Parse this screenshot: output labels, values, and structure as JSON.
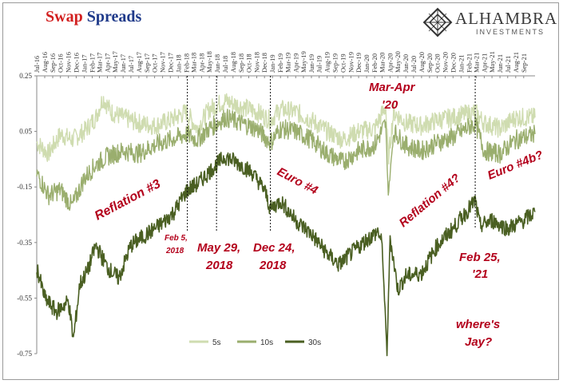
{
  "header": {
    "title_part1": "Swap",
    "title_part2": "Spreads",
    "brand_name": "ALHAMBRA",
    "brand_sub": "INVESTMENTS"
  },
  "chart_data": {
    "type": "line",
    "title": "Swap Spreads",
    "ylim": [
      -0.75,
      0.25
    ],
    "yticks": [
      0.25,
      0.05,
      -0.15,
      -0.35,
      -0.55,
      -0.75
    ],
    "ytick_labels": [
      "0.25",
      "0.05",
      "-0.15",
      "-0.35",
      "-0.55",
      "-0.75"
    ],
    "xlim": [
      "2016-07-01",
      "2021-10-15"
    ],
    "xtick_labels": [
      "Jul-16",
      "Aug-16",
      "Sep-16",
      "Oct-16",
      "Nov-16",
      "Dec-16",
      "Jan-17",
      "Feb-17",
      "Mar-17",
      "Apr-17",
      "May-17",
      "Jun-17",
      "Jul-17",
      "Aug-17",
      "Sep-17",
      "Oct-17",
      "Nov-17",
      "Dec-17",
      "Jan-18",
      "Feb-18",
      "Mar-18",
      "Apr-18",
      "May-18",
      "Jun-18",
      "Jul-18",
      "Aug-18",
      "Sep-18",
      "Oct-18",
      "Nov-18",
      "Dec-18",
      "Jan-19",
      "Feb-19",
      "Mar-19",
      "Apr-19",
      "May-19",
      "Jun-19",
      "Jul-19",
      "Aug-19",
      "Sep-19",
      "Oct-19",
      "Nov-19",
      "Dec-19",
      "Jan-20",
      "Feb-20",
      "Mar-20",
      "Apr-20",
      "May-20",
      "Jun-20",
      "Jul-20",
      "Aug-20",
      "Sep-20",
      "Oct-20",
      "Nov-20",
      "Dec-20",
      "Jan-21",
      "Feb-21",
      "Mar-21",
      "Apr-21",
      "May-21",
      "Jun-21",
      "Jul-21",
      "Aug-21",
      "Sep-21"
    ],
    "legend_position": "bottom-center",
    "series": [
      {
        "name": "5s",
        "color": "#cfdcb0",
        "points": [
          [
            "2016-07-01",
            0.01
          ],
          [
            "2016-08-15",
            -0.03
          ],
          [
            "2016-10-01",
            0.04
          ],
          [
            "2016-11-15",
            0.02
          ],
          [
            "2017-01-01",
            0.05
          ],
          [
            "2017-02-15",
            0.1
          ],
          [
            "2017-03-15",
            0.17
          ],
          [
            "2017-04-15",
            0.12
          ],
          [
            "2017-06-01",
            0.1
          ],
          [
            "2017-08-01",
            0.08
          ],
          [
            "2017-10-01",
            0.07
          ],
          [
            "2017-12-01",
            0.09
          ],
          [
            "2018-02-01",
            0.12
          ],
          [
            "2018-03-15",
            0.06
          ],
          [
            "2018-05-01",
            0.13
          ],
          [
            "2018-07-01",
            0.16
          ],
          [
            "2018-09-01",
            0.14
          ],
          [
            "2018-11-01",
            0.12
          ],
          [
            "2018-12-24",
            0.09
          ],
          [
            "2019-02-01",
            0.13
          ],
          [
            "2019-04-01",
            0.12
          ],
          [
            "2019-06-01",
            0.09
          ],
          [
            "2019-08-01",
            0.05
          ],
          [
            "2019-10-01",
            0.02
          ],
          [
            "2019-12-01",
            0.05
          ],
          [
            "2020-02-01",
            0.06
          ],
          [
            "2020-03-15",
            0.14
          ],
          [
            "2020-03-25",
            -0.05
          ],
          [
            "2020-04-15",
            0.12
          ],
          [
            "2020-06-01",
            0.08
          ],
          [
            "2020-08-01",
            0.07
          ],
          [
            "2020-10-01",
            0.09
          ],
          [
            "2020-12-01",
            0.1
          ],
          [
            "2021-02-25",
            0.12
          ],
          [
            "2021-04-01",
            0.08
          ],
          [
            "2021-06-01",
            0.06
          ],
          [
            "2021-08-01",
            0.1
          ],
          [
            "2021-10-15",
            0.1
          ]
        ]
      },
      {
        "name": "10s",
        "color": "#9aae6e",
        "points": [
          [
            "2016-07-01",
            -0.1
          ],
          [
            "2016-08-15",
            -0.18
          ],
          [
            "2016-10-01",
            -0.16
          ],
          [
            "2016-11-15",
            -0.22
          ],
          [
            "2017-01-01",
            -0.12
          ],
          [
            "2017-02-15",
            -0.07
          ],
          [
            "2017-04-01",
            -0.04
          ],
          [
            "2017-06-01",
            -0.02
          ],
          [
            "2017-08-01",
            -0.03
          ],
          [
            "2017-10-01",
            0.0
          ],
          [
            "2017-12-01",
            0.02
          ],
          [
            "2018-02-01",
            0.04
          ],
          [
            "2018-03-15",
            0.02
          ],
          [
            "2018-05-01",
            0.06
          ],
          [
            "2018-07-01",
            0.1
          ],
          [
            "2018-09-01",
            0.08
          ],
          [
            "2018-11-01",
            0.06
          ],
          [
            "2018-12-24",
            0.01
          ],
          [
            "2019-02-01",
            0.06
          ],
          [
            "2019-04-01",
            0.05
          ],
          [
            "2019-06-01",
            0.02
          ],
          [
            "2019-08-01",
            -0.03
          ],
          [
            "2019-10-01",
            -0.06
          ],
          [
            "2019-12-01",
            -0.02
          ],
          [
            "2020-02-01",
            0.0
          ],
          [
            "2020-03-15",
            0.08
          ],
          [
            "2020-03-25",
            -0.18
          ],
          [
            "2020-04-15",
            0.05
          ],
          [
            "2020-06-01",
            0.0
          ],
          [
            "2020-08-01",
            -0.02
          ],
          [
            "2020-10-01",
            0.01
          ],
          [
            "2020-12-01",
            0.03
          ],
          [
            "2021-02-25",
            0.08
          ],
          [
            "2021-04-01",
            -0.02
          ],
          [
            "2021-06-01",
            -0.03
          ],
          [
            "2021-08-01",
            0.02
          ],
          [
            "2021-10-15",
            0.04
          ]
        ]
      },
      {
        "name": "30s",
        "color": "#4a5f22",
        "points": [
          [
            "2016-07-01",
            -0.44
          ],
          [
            "2016-08-01",
            -0.55
          ],
          [
            "2016-09-15",
            -0.6
          ],
          [
            "2016-11-01",
            -0.56
          ],
          [
            "2016-11-20",
            -0.7
          ],
          [
            "2016-12-15",
            -0.5
          ],
          [
            "2017-01-15",
            -0.45
          ],
          [
            "2017-02-15",
            -0.36
          ],
          [
            "2017-04-01",
            -0.44
          ],
          [
            "2017-05-15",
            -0.48
          ],
          [
            "2017-07-01",
            -0.36
          ],
          [
            "2017-09-01",
            -0.32
          ],
          [
            "2017-11-01",
            -0.28
          ],
          [
            "2017-12-15",
            -0.24
          ],
          [
            "2018-02-05",
            -0.16
          ],
          [
            "2018-03-15",
            -0.14
          ],
          [
            "2018-05-29",
            -0.07
          ],
          [
            "2018-07-01",
            -0.04
          ],
          [
            "2018-09-01",
            -0.07
          ],
          [
            "2018-10-15",
            -0.1
          ],
          [
            "2018-12-01",
            -0.16
          ],
          [
            "2018-12-24",
            -0.23
          ],
          [
            "2019-02-01",
            -0.2
          ],
          [
            "2019-04-01",
            -0.27
          ],
          [
            "2019-06-01",
            -0.32
          ],
          [
            "2019-08-01",
            -0.39
          ],
          [
            "2019-09-15",
            -0.43
          ],
          [
            "2019-11-01",
            -0.39
          ],
          [
            "2020-01-01",
            -0.34
          ],
          [
            "2020-02-15",
            -0.31
          ],
          [
            "2020-03-01",
            -0.36
          ],
          [
            "2020-03-20",
            -0.75
          ],
          [
            "2020-04-01",
            -0.33
          ],
          [
            "2020-05-01",
            -0.52
          ],
          [
            "2020-06-01",
            -0.47
          ],
          [
            "2020-08-01",
            -0.46
          ],
          [
            "2020-10-01",
            -0.36
          ],
          [
            "2020-12-01",
            -0.3
          ],
          [
            "2021-02-25",
            -0.2
          ],
          [
            "2021-03-15",
            -0.29
          ],
          [
            "2021-05-01",
            -0.27
          ],
          [
            "2021-07-01",
            -0.3
          ],
          [
            "2021-09-01",
            -0.27
          ],
          [
            "2021-10-15",
            -0.24
          ]
        ]
      }
    ],
    "vlines": [
      {
        "date": "2018-02-05",
        "label": "Feb 5, 2018"
      },
      {
        "date": "2018-05-29",
        "label": "May 29, 2018"
      },
      {
        "date": "2018-12-24",
        "label": "Dec 24, 2018"
      },
      {
        "date": "2021-02-25",
        "label": "Feb 25, '21"
      }
    ],
    "annotations": [
      {
        "text": "Reflation #3"
      },
      {
        "text": "Feb 5,"
      },
      {
        "text": "2018"
      },
      {
        "text": "May 29,"
      },
      {
        "text": "2018"
      },
      {
        "text": "Dec 24,"
      },
      {
        "text": "2018"
      },
      {
        "text": "Euro #4"
      },
      {
        "text": "Mar-Apr"
      },
      {
        "text": "'20"
      },
      {
        "text": "Reflation #4?"
      },
      {
        "text": "Euro #4b?"
      },
      {
        "text": "Feb 25,"
      },
      {
        "text": "'21"
      },
      {
        "text": "where's"
      },
      {
        "text": "Jay?"
      }
    ]
  }
}
